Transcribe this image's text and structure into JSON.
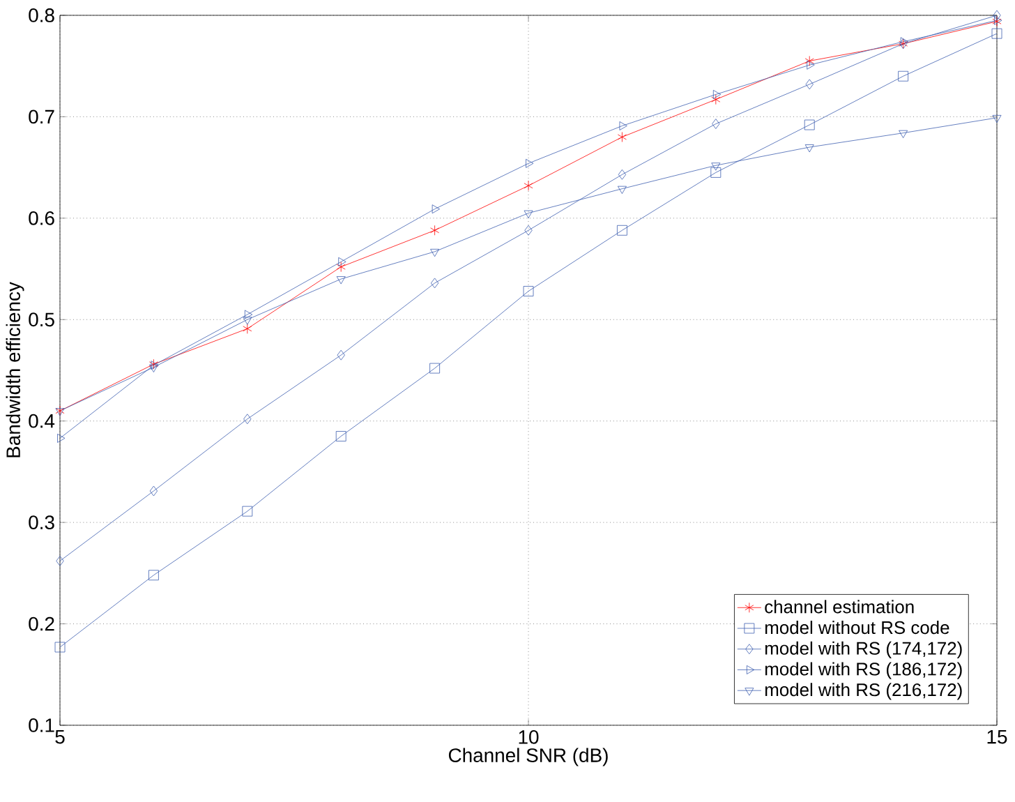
{
  "chart_data": {
    "type": "line",
    "xlabel": "Channel SNR (dB)",
    "ylabel": "Bandwidth efficiency",
    "x": [
      5,
      6,
      7,
      8,
      9,
      10,
      11,
      12,
      13,
      14,
      15
    ],
    "xlim": [
      5,
      15
    ],
    "xticks": [
      5,
      10,
      15
    ],
    "ylim": [
      0.1,
      0.8
    ],
    "yticks": [
      0.1,
      0.2,
      0.3,
      0.4,
      0.5,
      0.6,
      0.7,
      0.8
    ],
    "grid": true,
    "legend": "bottom right",
    "line_style": "solid",
    "series": [
      {
        "name": "channel estimation",
        "color": "#ff0000",
        "marker": "cross",
        "values": [
          0.41,
          0.456,
          0.491,
          0.552,
          0.588,
          0.632,
          0.68,
          0.717,
          0.755,
          0.772,
          0.794
        ]
      },
      {
        "name": "model without RS code",
        "color": "#3f5fb0",
        "marker": "square",
        "values": [
          0.177,
          0.248,
          0.311,
          0.385,
          0.452,
          0.528,
          0.588,
          0.645,
          0.692,
          0.74,
          0.782
        ]
      },
      {
        "name": "model with RS (174,172)",
        "color": "#3f5fb0",
        "marker": "diamond",
        "values": [
          0.262,
          0.331,
          0.402,
          0.465,
          0.536,
          0.588,
          0.643,
          0.693,
          0.732,
          0.772,
          0.8
        ]
      },
      {
        "name": "model with RS (186,172)",
        "color": "#3f5fb0",
        "marker": "triangle-right",
        "values": [
          0.383,
          0.455,
          0.505,
          0.557,
          0.609,
          0.654,
          0.691,
          0.722,
          0.751,
          0.774,
          0.795
        ]
      },
      {
        "name": "model with RS (216,172)",
        "color": "#3f5fb0",
        "marker": "triangle-down",
        "values": [
          0.41,
          0.453,
          0.5,
          0.54,
          0.567,
          0.605,
          0.629,
          0.652,
          0.67,
          0.684,
          0.699
        ]
      }
    ]
  }
}
